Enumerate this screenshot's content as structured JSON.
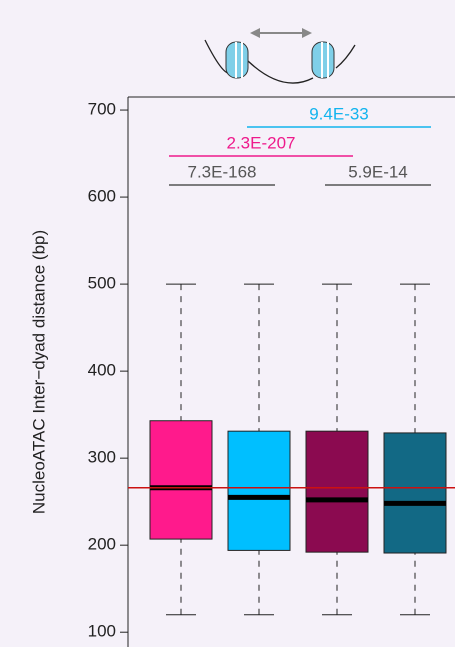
{
  "chart_data": {
    "type": "box",
    "y_label": "NucleoATAC Inter−dyad distance (bp)",
    "categories": [
      null,
      null,
      null,
      null
    ],
    "colors": [
      "#ff1a8c",
      "#00bfff",
      "#8b0a50",
      "#126985"
    ],
    "whislo": [
      120,
      120,
      120,
      120
    ],
    "q1": [
      207,
      194,
      192,
      191
    ],
    "median": [
      266,
      255,
      252,
      248
    ],
    "q3": [
      343,
      331,
      331,
      329
    ],
    "whishi": [
      500,
      500,
      500,
      500
    ],
    "hline": 266,
    "hline_color": "#cc1111",
    "annotations": [
      {
        "text": "7.3E-168",
        "color": "#555555"
      },
      {
        "text": "5.9E-14",
        "color": "#555555"
      },
      {
        "text": "2.3E-207",
        "color": "#ee1a8c"
      },
      {
        "text": "9.4E-33",
        "color": "#12b4ee"
      }
    ],
    "ylim": [
      83,
      715
    ],
    "yticks": [
      100,
      200,
      300,
      400,
      500,
      600,
      700
    ]
  }
}
